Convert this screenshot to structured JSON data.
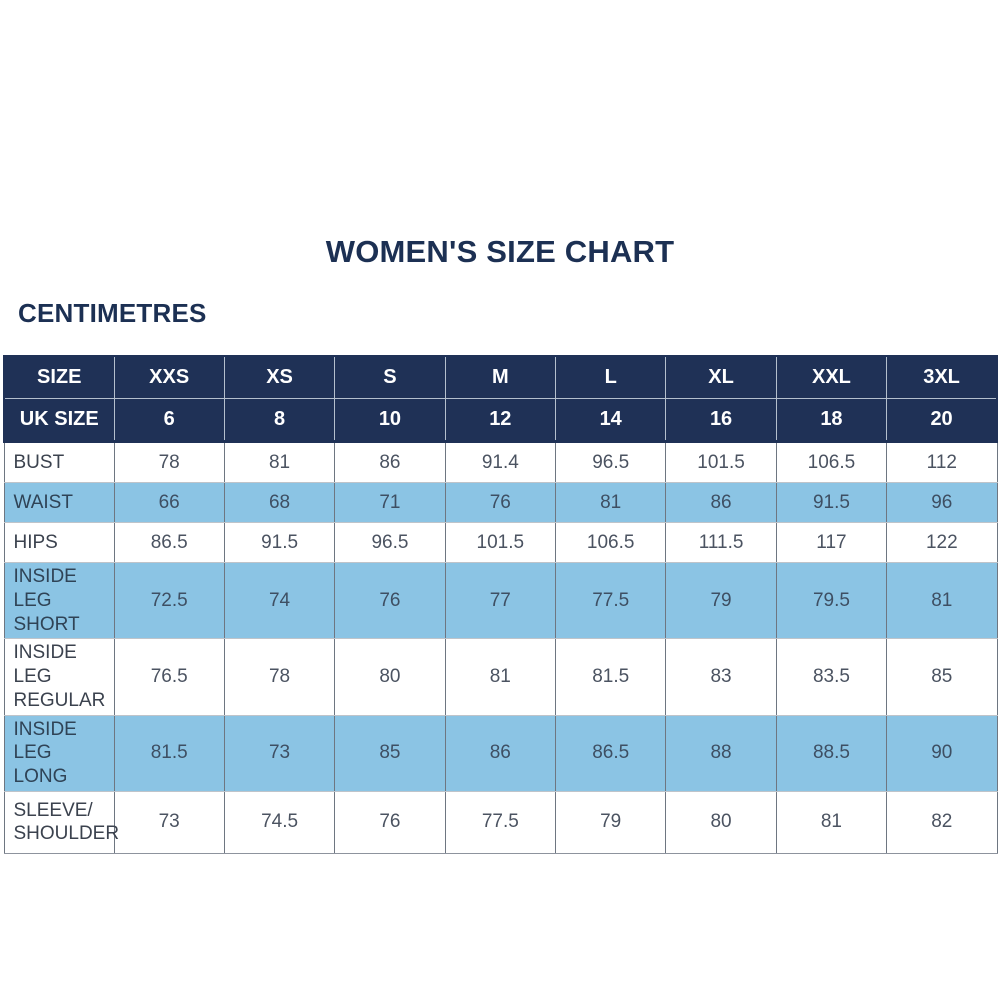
{
  "page": {
    "title": "WOMEN'S SIZE CHART",
    "subtitle": "CENTIMETRES"
  },
  "colors": {
    "navy_header": "#1f3156",
    "light_blue_row": "#8bc4e4",
    "title_text": "#1c3053",
    "cell_text": "#4b5361"
  },
  "table": {
    "size_row": {
      "label": "SIZE",
      "values": [
        "XXS",
        "XS",
        "S",
        "M",
        "L",
        "XL",
        "XXL",
        "3XL"
      ]
    },
    "uk_size_row": {
      "label": "UK SIZE",
      "values": [
        "6",
        "8",
        "10",
        "12",
        "14",
        "16",
        "18",
        "20"
      ]
    },
    "rows": [
      {
        "label": "BUST",
        "shade": "white",
        "values": [
          "78",
          "81",
          "86",
          "91.4",
          "96.5",
          "101.5",
          "106.5",
          "112"
        ]
      },
      {
        "label": "WAIST",
        "shade": "blue",
        "values": [
          "66",
          "68",
          "71",
          "76",
          "81",
          "86",
          "91.5",
          "96"
        ]
      },
      {
        "label": "HIPS",
        "shade": "white",
        "values": [
          "86.5",
          "91.5",
          "96.5",
          "101.5",
          "106.5",
          "111.5",
          "117",
          "122"
        ]
      },
      {
        "label": "INSIDE LEG SHORT",
        "shade": "blue",
        "values": [
          "72.5",
          "74",
          "76",
          "77",
          "77.5",
          "79",
          "79.5",
          "81"
        ]
      },
      {
        "label": "INSIDE LEG REGULAR",
        "shade": "white",
        "values": [
          "76.5",
          "78",
          "80",
          "81",
          "81.5",
          "83",
          "83.5",
          "85"
        ]
      },
      {
        "label": "INSIDE LEG LONG",
        "shade": "blue",
        "values": [
          "81.5",
          "73",
          "85",
          "86",
          "86.5",
          "88",
          "88.5",
          "90"
        ]
      },
      {
        "label": "SLEEVE/ SHOULDER",
        "shade": "white",
        "values": [
          "73",
          "74.5",
          "76",
          "77.5",
          "79",
          "80",
          "81",
          "82"
        ]
      }
    ]
  }
}
